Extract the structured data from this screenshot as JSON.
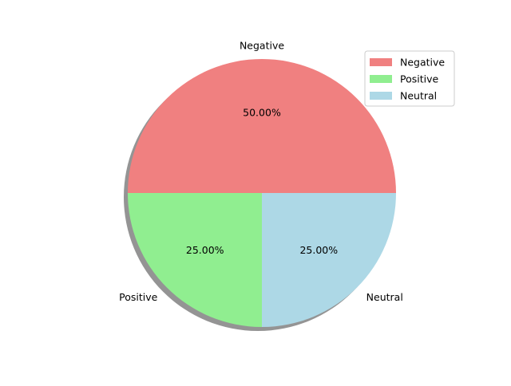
{
  "chart_data": {
    "type": "pie",
    "categories": [
      "Negative",
      "Positive",
      "Neutral"
    ],
    "values": [
      50,
      25,
      25
    ],
    "percent_labels": [
      "50.00%",
      "25.00%",
      "25.00%"
    ],
    "colors": [
      "#f08080",
      "#90ee90",
      "#add8e6"
    ],
    "start_angle_deg": 0,
    "counterclockwise": true,
    "shadow": true,
    "legend": {
      "placement": "top-right",
      "entries": [
        "Negative",
        "Positive",
        "Neutral"
      ]
    }
  }
}
